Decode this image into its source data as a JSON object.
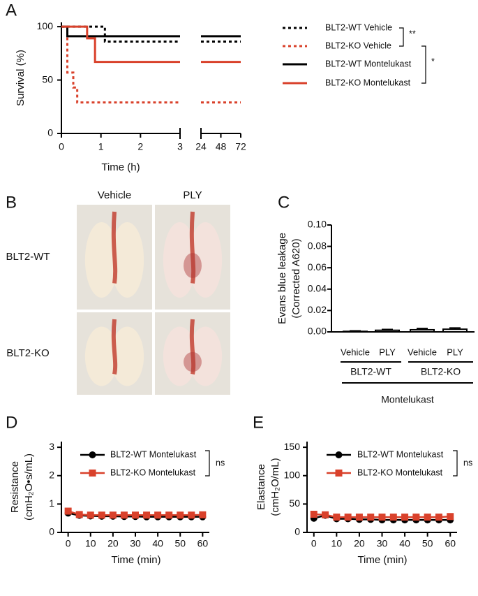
{
  "chart_data": [
    {
      "type": "line",
      "panel": "A",
      "step": true,
      "ylabel": [
        "Survival (%)"
      ],
      "xlabel": "Time (h)",
      "xlim": [
        0,
        72
      ],
      "xbreak": [
        3,
        24
      ],
      "xticks": [
        0,
        1,
        2,
        3,
        24,
        48,
        72
      ],
      "ylim": [
        0,
        104
      ],
      "yticks": [
        0,
        50,
        100
      ],
      "series": [
        {
          "name": "BLT2-WT Vehicle",
          "color": "#000000",
          "style": "dotted",
          "x": [
            0,
            1.1,
            72
          ],
          "values": [
            100,
            86,
            86
          ]
        },
        {
          "name": "BLT2-KO Vehicle",
          "color": "#d9412b",
          "style": "dotted",
          "x": [
            0,
            0.15,
            0.3,
            0.4,
            72
          ],
          "values": [
            100,
            57,
            43,
            29,
            29
          ]
        },
        {
          "name": "BLT2-WT Montelukast",
          "color": "#000000",
          "style": "solid",
          "x": [
            0,
            0.15,
            72
          ],
          "values": [
            100,
            91,
            91
          ]
        },
        {
          "name": "BLT2-KO Montelukast",
          "color": "#d9412b",
          "style": "solid",
          "x": [
            0,
            0.65,
            0.85,
            72
          ],
          "values": [
            100,
            89,
            67,
            67
          ]
        }
      ],
      "annotations": [
        "**",
        "*"
      ]
    },
    {
      "type": "photo-grid",
      "panel": "B",
      "columns": [
        "Vehicle",
        "PLY"
      ],
      "rows": [
        "BLT2-WT",
        "BLT2-KO"
      ]
    },
    {
      "type": "bar",
      "panel": "C",
      "ylabel": [
        "Evans blue leakage",
        "(Corrected A620)"
      ],
      "categories": [
        "Vehicle",
        "PLY",
        "Vehicle",
        "PLY"
      ],
      "groups": [
        "BLT2-WT",
        "BLT2-KO"
      ],
      "group_label": "Montelukast",
      "values": [
        0.0005,
        0.0015,
        0.002,
        0.0025
      ],
      "errors": [
        0.0005,
        0.0008,
        0.0012,
        0.0012
      ],
      "color": "#000000",
      "ylim": [
        0,
        0.1
      ],
      "yticks": [
        {
          "value": 0,
          "label": "0.00"
        },
        {
          "value": 0.02,
          "label": "0.02"
        },
        {
          "value": 0.04,
          "label": "0.04"
        },
        {
          "value": 0.06,
          "label": "0.06"
        },
        {
          "value": 0.08,
          "label": "0.08"
        },
        {
          "value": 0.1,
          "label": "0.10"
        }
      ]
    },
    {
      "type": "line",
      "panel": "D",
      "ylabel": [
        "Resistance",
        "(cmH₂O•s/mL)"
      ],
      "xlabel": "Time (min)",
      "xlim": [
        -3,
        63
      ],
      "xticks": [
        0,
        10,
        20,
        30,
        40,
        50,
        60
      ],
      "ylim": [
        0,
        3.2
      ],
      "yticks": [
        0,
        1,
        2,
        3
      ],
      "series": [
        {
          "name": "BLT2-WT Montelukast",
          "color": "#000000",
          "marker": "circle",
          "x": [
            0,
            5,
            10,
            15,
            20,
            25,
            30,
            35,
            40,
            45,
            50,
            55,
            60
          ],
          "values": [
            0.68,
            0.6,
            0.58,
            0.57,
            0.57,
            0.56,
            0.56,
            0.55,
            0.55,
            0.55,
            0.55,
            0.55,
            0.55
          ]
        },
        {
          "name": "BLT2-KO Montelukast",
          "color": "#d9412b",
          "marker": "square",
          "x": [
            0,
            5,
            10,
            15,
            20,
            25,
            30,
            35,
            40,
            45,
            50,
            55,
            60
          ],
          "values": [
            0.75,
            0.63,
            0.61,
            0.61,
            0.61,
            0.61,
            0.61,
            0.61,
            0.61,
            0.61,
            0.61,
            0.61,
            0.62
          ]
        }
      ],
      "annotations": [
        "ns"
      ]
    },
    {
      "type": "line",
      "panel": "E",
      "ylabel": [
        "Elastance",
        "(cmH₂O/mL)"
      ],
      "xlabel": "Time (min)",
      "xlim": [
        -3,
        63
      ],
      "xticks": [
        0,
        10,
        20,
        30,
        40,
        50,
        60
      ],
      "ylim": [
        0,
        160
      ],
      "yticks": [
        0,
        50,
        100,
        150
      ],
      "series": [
        {
          "name": "BLT2-WT Montelukast",
          "color": "#000000",
          "marker": "circle",
          "x": [
            0,
            5,
            10,
            15,
            20,
            25,
            30,
            35,
            40,
            45,
            50,
            55,
            60
          ],
          "values": [
            25,
            30,
            24,
            24,
            23,
            23,
            22,
            22,
            22,
            22,
            22,
            22,
            22
          ]
        },
        {
          "name": "BLT2-KO Montelukast",
          "color": "#d9412b",
          "marker": "square",
          "x": [
            0,
            5,
            10,
            15,
            20,
            25,
            30,
            35,
            40,
            45,
            50,
            55,
            60
          ],
          "values": [
            32,
            31,
            27,
            27,
            27,
            27,
            27,
            27,
            27,
            27,
            27,
            27,
            28
          ]
        }
      ],
      "annotations": [
        "ns"
      ]
    }
  ]
}
